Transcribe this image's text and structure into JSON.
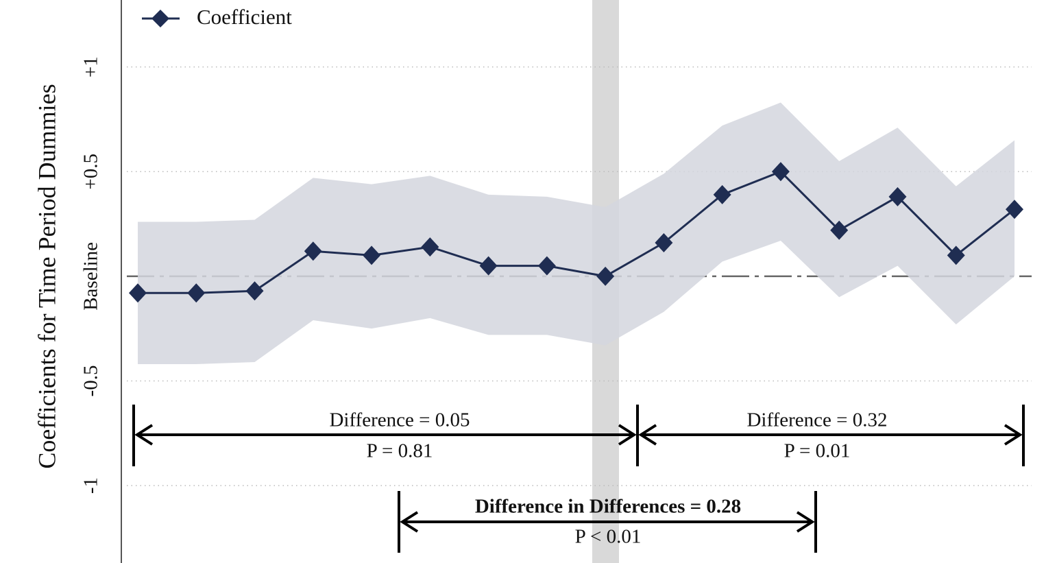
{
  "chart_data": {
    "type": "line",
    "y_label": "Coefficients for Time Period Dummies",
    "categories": [
      null,
      null,
      null,
      null,
      null,
      null,
      null,
      null,
      null,
      null,
      null,
      null,
      null,
      null,
      null,
      null
    ],
    "series": [
      {
        "name": "Coefficient",
        "color": "#1f2d52",
        "values": [
          -0.08,
          -0.08,
          -0.07,
          0.12,
          0.1,
          0.14,
          0.05,
          0.05,
          0,
          0.16,
          0.39,
          0.5,
          0.22,
          0.38,
          0.1,
          0.32
        ],
        "upper": [
          0.26,
          0.26,
          0.27,
          0.47,
          0.44,
          0.48,
          0.39,
          0.38,
          0.33,
          0.49,
          0.72,
          0.83,
          0.55,
          0.71,
          0.43,
          0.65
        ],
        "lower": [
          -0.42,
          -0.42,
          -0.41,
          -0.21,
          -0.25,
          -0.2,
          -0.28,
          -0.28,
          -0.33,
          -0.17,
          0.07,
          0.17,
          -0.1,
          0.05,
          -0.23,
          0
        ]
      }
    ],
    "band_color": "#d3d6de",
    "ylim": [
      -1.37,
      1.32
    ],
    "yticks": [
      {
        "value": 1,
        "label": "+1"
      },
      {
        "value": 0.5,
        "label": "+0.5"
      },
      {
        "value": 0,
        "label": "Baseline"
      },
      -0.5,
      -1
    ],
    "grid": true,
    "legend": "top-left",
    "annotations": [
      {
        "label": "Difference = 0.05",
        "p": "P = 0.81"
      },
      {
        "label": "Difference = 0.32",
        "p": "P = 0.01"
      },
      {
        "label": "Difference in Differences = 0.28",
        "p": "P < 0.01"
      }
    ]
  }
}
